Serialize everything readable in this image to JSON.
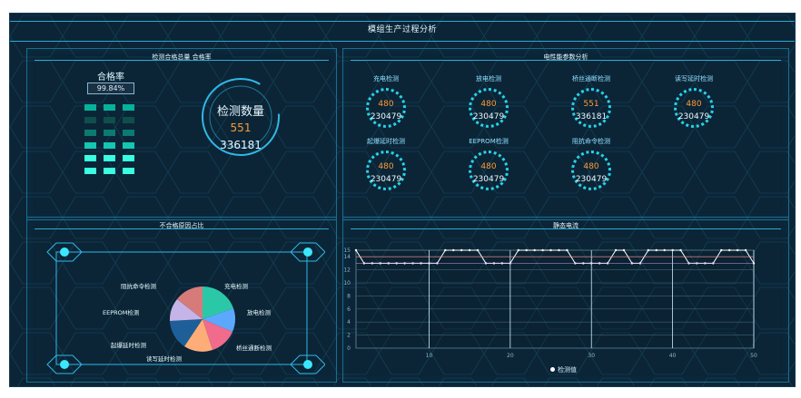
{
  "header": {
    "title": "模组生产过程分析"
  },
  "panels": {
    "summary": {
      "title": "检测合格总量 合格率"
    },
    "electrical": {
      "title": "电性能参数分析"
    },
    "defect": {
      "title": "不合格原因占比"
    },
    "static": {
      "title": "静态电流"
    }
  },
  "pass_rate": {
    "label": "合格率",
    "value": "99.84%"
  },
  "inspection": {
    "label": "检测数量",
    "fail": "551",
    "total": "336181"
  },
  "electrical_tests": [
    {
      "label": "充电检测",
      "fail": "480",
      "total": "230479"
    },
    {
      "label": "放电检测",
      "fail": "480",
      "total": "230479"
    },
    {
      "label": "桥丝通断检测",
      "fail": "551",
      "total": "336181"
    },
    {
      "label": "读写延时检测",
      "fail": "480",
      "total": "230479"
    },
    {
      "label": "起爆延时检测",
      "fail": "480",
      "total": "230479"
    },
    {
      "label": "EEPROM检测",
      "fail": "480",
      "total": "230479"
    },
    {
      "label": "阻抗命令检测",
      "fail": "480",
      "total": "230479"
    }
  ],
  "defect_labels": [
    "阻抗命令检测",
    "充电检测",
    "EEPROM检测",
    "放电检测",
    "起爆延时检测",
    "桥丝通断检测",
    "读写延时检测"
  ],
  "colors": {
    "accent": "#2fb8e6",
    "orange": "#ff9a35",
    "cyan": "#28d3e8",
    "pie": [
      "#f2a0b9",
      "#f06b8c",
      "#ffad78",
      "#1f5f99",
      "#c5b4e8",
      "#d77a7a",
      "#2bc8a8",
      "#5da8ff"
    ]
  },
  "chart_data": {
    "type": "line",
    "title": "",
    "xlabel": "",
    "ylabel": "",
    "ylim": [
      0,
      15
    ],
    "xlim": [
      1,
      50
    ],
    "y_ticks": [
      15,
      14,
      12,
      10,
      8,
      6,
      4,
      2,
      0
    ],
    "x_ticks": [
      10,
      20,
      30,
      40,
      50
    ],
    "series": [
      {
        "name": "检测值",
        "values": [
          15,
          13,
          13,
          13,
          13,
          13,
          13,
          13,
          13,
          13,
          13,
          15,
          15,
          15,
          15,
          15,
          13,
          13,
          13,
          13,
          15,
          15,
          15,
          15,
          15,
          15,
          15,
          13,
          13,
          13,
          13,
          13,
          15,
          15,
          13,
          13,
          15,
          15,
          15,
          15,
          15,
          13,
          13,
          13,
          13,
          15,
          15,
          15,
          15,
          13
        ]
      }
    ],
    "grid": true,
    "legend": "bottom-center"
  }
}
